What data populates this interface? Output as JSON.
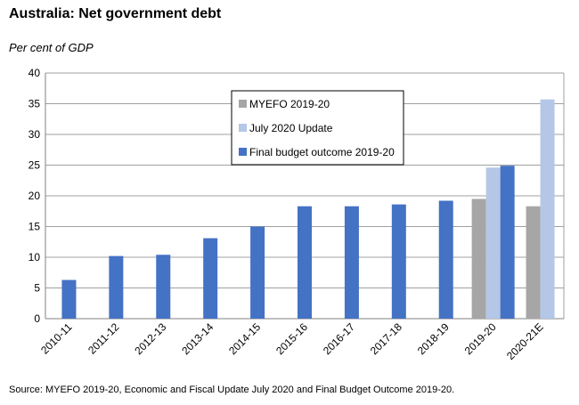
{
  "header": {
    "title": "Australia: Net government debt",
    "ylabel": "Per cent of GDP"
  },
  "footer": {
    "source": "Source: MYEFO 2019-20,  Economic and Fiscal Update July 2020 and Final Budget Outcome 2019-20."
  },
  "chart_data": {
    "type": "bar",
    "title": "Australia: Net government debt",
    "ylabel": "Per cent of GDP",
    "xlabel": "",
    "ylim": [
      0,
      40
    ],
    "yticks": [
      0,
      5,
      10,
      15,
      20,
      25,
      30,
      35,
      40
    ],
    "grid": true,
    "legend_position": "top-center",
    "categories": [
      "2010-11",
      "2011-12",
      "2012-13",
      "2013-14",
      "2014-15",
      "2015-16",
      "2016-17",
      "2017-18",
      "2018-19",
      "2019-20",
      "2020-21E"
    ],
    "series": [
      {
        "name": "MYEFO 2019-20",
        "color": "#a6a6a6",
        "values": [
          null,
          null,
          null,
          null,
          null,
          null,
          null,
          null,
          null,
          19.5,
          18.3
        ]
      },
      {
        "name": "July 2020 Update",
        "color": "#b4c7e7",
        "values": [
          null,
          null,
          null,
          null,
          null,
          null,
          null,
          null,
          null,
          24.6,
          35.7
        ]
      },
      {
        "name": "Final budget outcome 2019-20",
        "color": "#4472c4",
        "values": [
          6.3,
          10.2,
          10.4,
          13.1,
          15.0,
          18.3,
          18.3,
          18.6,
          19.2,
          24.9,
          null
        ]
      }
    ]
  }
}
